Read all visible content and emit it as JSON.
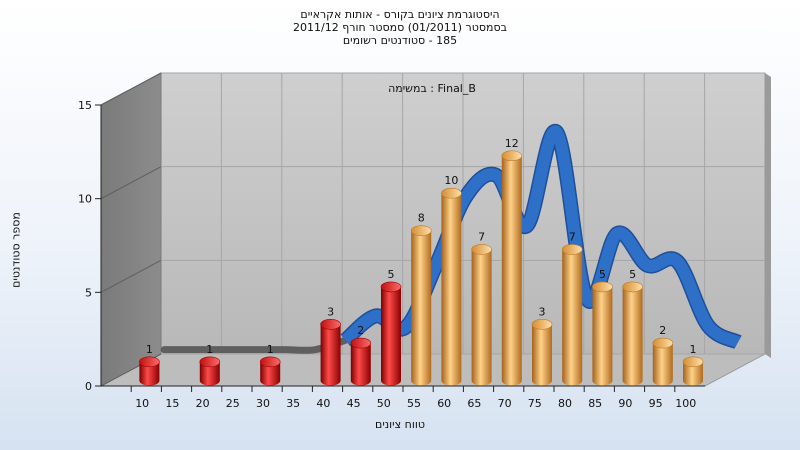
{
  "chart_data": {
    "type": "bar",
    "title_lines": [
      "היסטוגרמת ציונים בקורס - אותות אקראיים",
      "בסמסטר  (01/2011)  סמסטר חורף 2011/12",
      "185 - סטודנטים רשומים"
    ],
    "subtitle": "Final_B : במשימה",
    "xlabel": "טווח ציונים",
    "ylabel": "מספר סטודנטים",
    "ylim": [
      0,
      15
    ],
    "yticks": [
      0,
      5,
      10,
      15
    ],
    "xticks": [
      10,
      15,
      20,
      25,
      30,
      35,
      40,
      45,
      50,
      55,
      60,
      65,
      70,
      75,
      80,
      85,
      90,
      95,
      100
    ],
    "grid": true,
    "bars": [
      {
        "x": 10,
        "value": 1,
        "color": "#e02020"
      },
      {
        "x": 20,
        "value": 1,
        "color": "#e02020"
      },
      {
        "x": 30,
        "value": 1,
        "color": "#e02020"
      },
      {
        "x": 40,
        "value": 3,
        "color": "#e02020"
      },
      {
        "x": 45,
        "value": 2,
        "color": "#e02020"
      },
      {
        "x": 50,
        "value": 5,
        "color": "#e02020"
      },
      {
        "x": 55,
        "value": 8,
        "color": "#e8a040"
      },
      {
        "x": 60,
        "value": 10,
        "color": "#e8a040"
      },
      {
        "x": 65,
        "value": 7,
        "color": "#e8a040"
      },
      {
        "x": 70,
        "value": 12,
        "color": "#e8a040"
      },
      {
        "x": 75,
        "value": 3,
        "color": "#e8a040"
      },
      {
        "x": 80,
        "value": 7,
        "color": "#e8a040"
      },
      {
        "x": 85,
        "value": 5,
        "color": "#e8a040"
      },
      {
        "x": 90,
        "value": 5,
        "color": "#e8a040"
      },
      {
        "x": 95,
        "value": 2,
        "color": "#e8a040"
      },
      {
        "x": 100,
        "value": 1,
        "color": "#e8a040"
      }
    ],
    "ribbon": {
      "x": [
        10,
        15,
        20,
        25,
        30,
        35,
        40,
        45,
        50,
        55,
        60,
        65,
        70,
        75,
        80,
        85,
        90,
        95,
        100,
        105
      ],
      "values": [
        1,
        1,
        1,
        1,
        1,
        1,
        1.5,
        2.8,
        2.2,
        5.5,
        9.2,
        10.3,
        7.6,
        12.6,
        3.7,
        7.2,
        5.5,
        5.7,
        2.3,
        1.4
      ],
      "color_low": "#555555",
      "color_high": "#2e6fc7"
    }
  }
}
